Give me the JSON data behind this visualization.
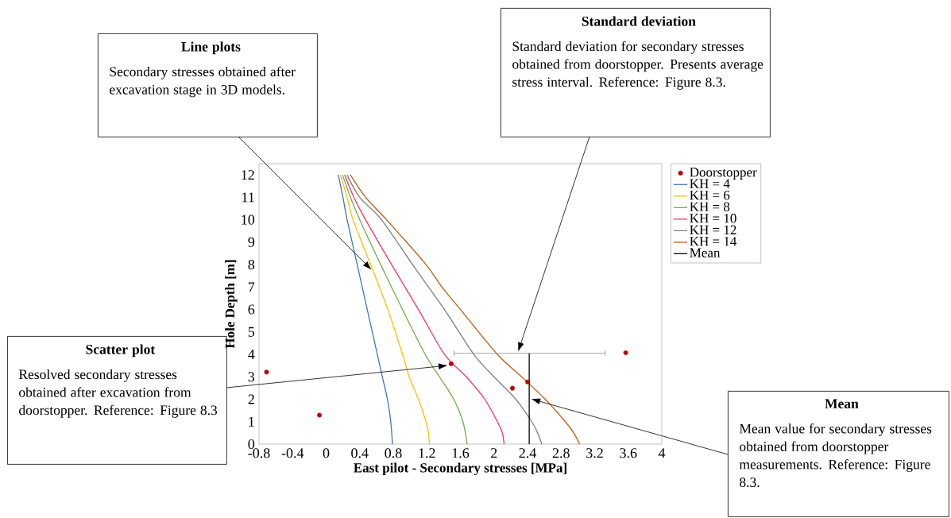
{
  "chart_data": {
    "type": "line",
    "xlabel": "East pilot - Secondary stresses [MPa]",
    "ylabel": "Hole Depth [m]",
    "xlim": [
      -0.8,
      4
    ],
    "ylim": [
      0,
      12.5
    ],
    "xticks": [
      -0.8,
      -0.4,
      0,
      0.4,
      0.8,
      1.2,
      1.6,
      2,
      2.4,
      2.8,
      3.2,
      3.6,
      4
    ],
    "yticks": [
      0,
      1,
      2,
      3,
      4,
      5,
      6,
      7,
      8,
      9,
      10,
      11,
      12
    ],
    "legend": "right",
    "grid": false,
    "series": [
      {
        "name": "Doorstopper",
        "type": "scatter",
        "marker": "circle",
        "color": "#c00000",
        "x": [
          -0.71,
          -0.08,
          1.49,
          2.22,
          2.4,
          3.57
        ],
        "values": [
          3.21,
          1.29,
          3.58,
          2.49,
          2.77,
          4.07
        ]
      },
      {
        "name": "KH = 4",
        "color": "#4472c4",
        "x": [
          0.79,
          0.77,
          0.73,
          0.67,
          0.61,
          0.49,
          0.37,
          0.25,
          0.2,
          0.145
        ],
        "values": [
          0,
          1,
          2,
          3,
          4,
          6,
          8,
          10,
          11,
          12
        ]
      },
      {
        "name": "KH = 6",
        "color": "#ffc000",
        "x": [
          1.23,
          1.22,
          1.19,
          1.1,
          0.99,
          0.91,
          0.735,
          0.53,
          0.32,
          0.25,
          0.17
        ],
        "values": [
          0,
          0.5,
          1,
          2,
          3,
          4,
          6,
          8,
          10,
          11,
          12
        ]
      },
      {
        "name": "KH = 8",
        "color": "#70ad47",
        "x": [
          1.68,
          1.63,
          1.52,
          1.35,
          1.18,
          0.91,
          0.65,
          0.4,
          0.29,
          0.195
        ],
        "values": [
          0,
          1,
          2,
          3,
          4,
          6,
          8,
          10,
          11,
          12
        ]
      },
      {
        "name": "KH = 10",
        "color": "#ff3366",
        "x": [
          2.12,
          2.1,
          2.04,
          1.89,
          1.67,
          1.41,
          1.1,
          0.78,
          0.47,
          0.33,
          0.22
        ],
        "values": [
          0,
          0.5,
          1,
          2,
          3,
          4,
          6,
          8,
          10,
          11,
          12
        ]
      },
      {
        "name": "KH = 12",
        "color": "#7f7f7f",
        "x": [
          2.57,
          2.52,
          2.45,
          2.26,
          2.0,
          1.76,
          1.41,
          1.03,
          0.66,
          0.4,
          0.25
        ],
        "values": [
          0,
          0.5,
          1,
          2,
          3,
          4,
          6,
          8,
          10,
          11,
          12
        ]
      },
      {
        "name": "KH = 14",
        "color": "#c55a11",
        "x": [
          3.02,
          2.95,
          2.85,
          2.61,
          2.33,
          2.04,
          1.6,
          1.38,
          1.19,
          0.72,
          0.47,
          0.29
        ],
        "values": [
          0,
          0.5,
          1,
          2,
          3,
          4,
          6,
          7,
          8,
          10,
          11,
          12
        ]
      },
      {
        "name": "Mean",
        "color": "#000000",
        "x": [
          2.42,
          2.42
        ],
        "values": [
          0,
          4.05
        ],
        "xerrors": [
          null,
          [
            1.52,
            3.33
          ]
        ]
      }
    ],
    "annotations": [
      "Line plots",
      "Secondary stresses obtained after excavation stage in 3D models.",
      "Standard deviation",
      "Standard deviation for secondary stresses obtained from doorstopper. Presents average stress interval. Reference: Figure 8.3.",
      "Scatter plot",
      "Resolved secondary stresses obtained after excavation from doorstopper. Reference: Figure 8.3",
      "Mean",
      "Mean value for secondary stresses obtained from doorstopper measurements. Reference: Figure 8.3."
    ]
  }
}
